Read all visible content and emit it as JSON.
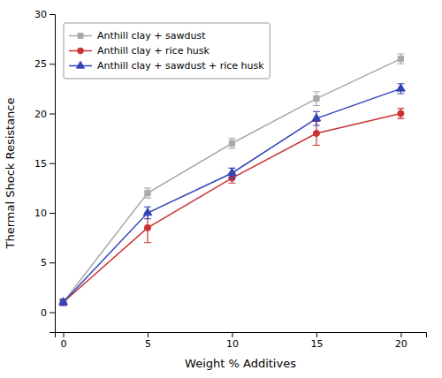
{
  "chart_data": {
    "type": "line",
    "x": [
      0,
      5,
      10,
      15,
      20
    ],
    "series": [
      {
        "name": "Anthill clay + sawdust",
        "color": "#aaaaaa",
        "marker": "square",
        "values": [
          1,
          12,
          17,
          21.5,
          25.5
        ],
        "yerr": [
          0.3,
          0.5,
          0.5,
          0.7,
          0.5
        ]
      },
      {
        "name": "Anthill clay + rice husk",
        "color": "#cc3333",
        "marker": "circle",
        "values": [
          1,
          8.5,
          13.5,
          18,
          20
        ],
        "yerr": [
          0.3,
          1.5,
          0.5,
          1.2,
          0.5
        ]
      },
      {
        "name": "Anthill clay + sawdust + rice husk",
        "color": "#3344bb",
        "marker": "triangle",
        "values": [
          1,
          10,
          14,
          19.5,
          22.5
        ],
        "yerr": [
          0.3,
          0.6,
          0.5,
          0.7,
          0.5
        ]
      }
    ],
    "xlabel": "Weight % Additives",
    "ylabel": "Thermal Shock Resistance",
    "xlim": [
      -0.5,
      21.5
    ],
    "ylim": [
      -2,
      30
    ],
    "xticks": [
      0,
      5,
      10,
      15,
      20
    ],
    "yticks": [
      0,
      5,
      10,
      15,
      20,
      25,
      30
    ],
    "legend": "upper left",
    "grid": false
  }
}
